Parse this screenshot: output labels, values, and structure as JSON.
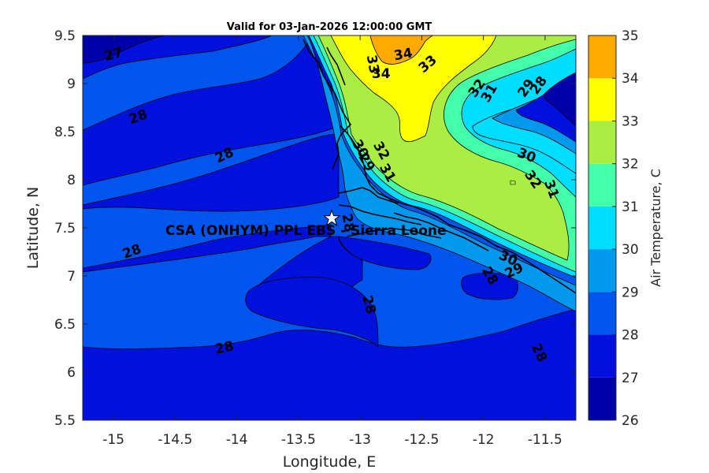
{
  "title": "Valid for 03-Jan-2026 12:00:00 GMT",
  "x_axis": {
    "label": "Longitude, E",
    "range": [
      -15.25,
      -11.25
    ],
    "ticks": [
      -15,
      -14.5,
      -14,
      -13.5,
      -13,
      -12.5,
      -12,
      -11.5
    ],
    "tick_labels": [
      "-15",
      "-14.5",
      "-14",
      "-13.5",
      "-13",
      "-12.5",
      "-12",
      "-11.5"
    ]
  },
  "y_axis": {
    "label": "Latitude, N",
    "range": [
      5.5,
      9.5
    ],
    "ticks": [
      5.5,
      6,
      6.5,
      7,
      7.5,
      8,
      8.5,
      9,
      9.5
    ],
    "tick_labels": [
      "5.5",
      "6",
      "6.5",
      "7",
      "7.5",
      "8",
      "8.5",
      "9",
      "9.5"
    ]
  },
  "colorbar": {
    "label": "Air Temperature, C",
    "levels": [
      26,
      27,
      28,
      29,
      30,
      31,
      32,
      33,
      34,
      35
    ],
    "tick_labels": [
      "26",
      "27",
      "28",
      "29",
      "30",
      "31",
      "32",
      "33",
      "34",
      "35"
    ],
    "colors": [
      "#0000aa",
      "#0011dd",
      "#0055ee",
      "#0099ee",
      "#00ddff",
      "#44ffaa",
      "#aaee44",
      "#ffff00",
      "#ffaa00",
      "#ff5500"
    ]
  },
  "site": {
    "name": "CSA (ONHYM) PPL EBS - Sierra Leone",
    "lon": -13.23,
    "lat": 7.6,
    "marker": "star-icon"
  },
  "contour_labels": [
    {
      "text": "27",
      "lon": -15.0,
      "lat": 9.3,
      "rot": -15
    },
    {
      "text": "28",
      "lon": -14.8,
      "lat": 8.65,
      "rot": -20
    },
    {
      "text": "28",
      "lon": -14.1,
      "lat": 8.25,
      "rot": -25
    },
    {
      "text": "28",
      "lon": -14.85,
      "lat": 7.25,
      "rot": -20
    },
    {
      "text": "28",
      "lon": -14.1,
      "lat": 6.25,
      "rot": -12
    },
    {
      "text": "28",
      "lon": -12.93,
      "lat": 6.7,
      "rot": 75
    },
    {
      "text": "28",
      "lon": -13.1,
      "lat": 7.55,
      "rot": 80
    },
    {
      "text": "28",
      "lon": -11.95,
      "lat": 7.0,
      "rot": 60
    },
    {
      "text": "28",
      "lon": -11.55,
      "lat": 6.2,
      "rot": 65
    },
    {
      "text": "29",
      "lon": -11.75,
      "lat": 7.05,
      "rot": -25
    },
    {
      "text": "30",
      "lon": -11.8,
      "lat": 7.18,
      "rot": 25
    },
    {
      "text": "30",
      "lon": -11.65,
      "lat": 8.25,
      "rot": 20
    },
    {
      "text": "31",
      "lon": -11.45,
      "lat": 7.9,
      "rot": 70
    },
    {
      "text": "32",
      "lon": -11.6,
      "lat": 8.0,
      "rot": 55
    },
    {
      "text": "33",
      "lon": -12.9,
      "lat": 9.2,
      "rot": 80
    },
    {
      "text": "33",
      "lon": -12.45,
      "lat": 9.2,
      "rot": -40
    },
    {
      "text": "34",
      "lon": -12.65,
      "lat": 9.3,
      "rot": -10
    },
    {
      "text": "34",
      "lon": -12.83,
      "lat": 9.1,
      "rot": 0
    },
    {
      "text": "32",
      "lon": -12.05,
      "lat": 8.95,
      "rot": -55
    },
    {
      "text": "31",
      "lon": -11.95,
      "lat": 8.9,
      "rot": -60
    },
    {
      "text": "29",
      "lon": -11.65,
      "lat": 8.95,
      "rot": -55
    },
    {
      "text": "28",
      "lon": -11.55,
      "lat": 8.98,
      "rot": -55
    },
    {
      "text": "32",
      "lon": -12.83,
      "lat": 8.3,
      "rot": 60
    },
    {
      "text": "31",
      "lon": -12.78,
      "lat": 8.07,
      "rot": 60
    },
    {
      "text": "30",
      "lon": -13.0,
      "lat": 8.32,
      "rot": 60
    },
    {
      "text": "29",
      "lon": -12.95,
      "lat": 8.18,
      "rot": 60
    }
  ]
}
